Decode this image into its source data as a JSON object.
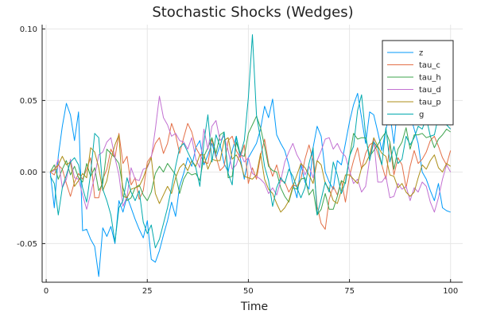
{
  "chart_data": {
    "type": "line",
    "title": "Stochastic Shocks (Wedges)",
    "xlabel": "Time",
    "ylabel": "",
    "xlim": [
      -1,
      103
    ],
    "ylim": [
      -0.077,
      0.103
    ],
    "xticks": [
      0,
      25,
      50,
      75,
      100
    ],
    "xtick_labels": [
      "0",
      "25",
      "50",
      "75",
      "100"
    ],
    "yticks": [
      -0.05,
      0.0,
      0.05,
      0.1
    ],
    "ytick_labels": [
      "-0.05",
      "0.00",
      "0.05",
      "0.10"
    ],
    "grid": true,
    "legend": "top-right",
    "x": [
      1,
      2,
      3,
      4,
      5,
      6,
      7,
      8,
      9,
      10,
      11,
      12,
      13,
      14,
      15,
      16,
      17,
      18,
      19,
      20,
      21,
      22,
      23,
      24,
      25,
      26,
      27,
      28,
      29,
      30,
      31,
      32,
      33,
      34,
      35,
      36,
      37,
      38,
      39,
      40,
      41,
      42,
      43,
      44,
      45,
      46,
      47,
      48,
      49,
      50,
      51,
      52,
      53,
      54,
      55,
      56,
      57,
      58,
      59,
      60,
      61,
      62,
      63,
      64,
      65,
      66,
      67,
      68,
      69,
      70,
      71,
      72,
      73,
      74,
      75,
      76,
      77,
      78,
      79,
      80,
      81,
      82,
      83,
      84,
      85,
      86,
      87,
      88,
      89,
      90,
      91,
      92,
      93,
      94,
      95,
      96,
      97,
      98,
      99,
      100
    ],
    "series": [
      {
        "name": "z",
        "color": "#009AFA",
        "values": [
          0.0,
          -0.025,
          0.011,
          0.032,
          0.048,
          0.04,
          0.022,
          0.042,
          -0.041,
          -0.04,
          -0.047,
          -0.052,
          -0.073,
          -0.039,
          -0.045,
          -0.038,
          -0.05,
          -0.02,
          -0.028,
          -0.017,
          -0.025,
          -0.033,
          -0.04,
          -0.046,
          -0.034,
          -0.061,
          -0.063,
          -0.055,
          -0.044,
          -0.034,
          -0.021,
          -0.031,
          -0.01,
          -0.001,
          0.01,
          0.004,
          0.017,
          0.022,
          0.005,
          0.012,
          0.02,
          0.01,
          0.019,
          0.006,
          0.0,
          0.015,
          0.025,
          0.01,
          -0.005,
          0.01,
          0.015,
          0.02,
          0.03,
          0.046,
          0.038,
          0.051,
          0.026,
          0.02,
          0.015,
          0.005,
          -0.008,
          -0.018,
          0.005,
          -0.007,
          -0.012,
          0.017,
          0.032,
          0.025,
          0.0,
          -0.007,
          -0.012,
          0.008,
          0.005,
          0.02,
          0.035,
          0.047,
          0.055,
          0.038,
          0.02,
          0.042,
          0.04,
          0.028,
          0.015,
          0.03,
          0.041,
          0.02,
          0.048,
          0.049,
          0.04,
          0.04,
          0.03,
          0.02,
          0.0,
          -0.005,
          -0.013,
          -0.02,
          -0.008,
          -0.025,
          -0.027,
          -0.028
        ]
      },
      {
        "name": "tau_c",
        "color": "#E36F47",
        "values": [
          0.0,
          -0.002,
          0.005,
          0.002,
          -0.008,
          -0.017,
          -0.007,
          -0.001,
          -0.005,
          0.002,
          0.01,
          -0.018,
          -0.018,
          -0.005,
          0.002,
          0.016,
          0.01,
          0.027,
          0.006,
          0.011,
          -0.009,
          -0.004,
          -0.019,
          -0.013,
          0.007,
          0.011,
          0.02,
          0.024,
          0.013,
          0.02,
          0.034,
          0.026,
          0.013,
          0.024,
          0.034,
          0.028,
          0.017,
          0.012,
          0.007,
          0.006,
          0.023,
          0.011,
          0.001,
          0.004,
          0.022,
          0.025,
          0.015,
          0.01,
          0.019,
          -0.008,
          0.003,
          -0.005,
          0.011,
          0.023,
          0.006,
          -0.003,
          0.005,
          -0.006,
          -0.007,
          -0.014,
          -0.009,
          -0.01,
          -0.005,
          0.009,
          0.019,
          0.008,
          -0.024,
          -0.036,
          -0.04,
          -0.019,
          -0.01,
          -0.016,
          -0.006,
          -0.021,
          -0.003,
          0.008,
          0.017,
          0.002,
          0.013,
          0.019,
          0.021,
          0.013,
          0.005,
          -0.005,
          0.02,
          -0.002,
          0.01,
          0.005,
          -0.011,
          0.004,
          0.015,
          0.006,
          0.009,
          0.014,
          0.022,
          0.025,
          0.018,
          0.01,
          0.005,
          0.015
        ]
      },
      {
        "name": "tau_h",
        "color": "#3EA44E",
        "values": [
          0.0,
          0.005,
          -0.005,
          0.002,
          0.008,
          -0.002,
          0.004,
          -0.004,
          -0.007,
          0.006,
          -0.003,
          0.003,
          -0.013,
          -0.008,
          0.016,
          0.013,
          0.01,
          0.006,
          -0.011,
          -0.02,
          -0.018,
          -0.011,
          -0.009,
          -0.016,
          -0.02,
          -0.014,
          -0.001,
          0.004,
          0.0,
          0.006,
          0.002,
          -0.002,
          -0.015,
          -0.005,
          0.0,
          -0.002,
          -0.001,
          -0.006,
          0.011,
          0.017,
          0.024,
          0.013,
          0.026,
          0.028,
          -0.004,
          -0.003,
          0.021,
          0.012,
          0.011,
          0.027,
          0.033,
          0.039,
          0.031,
          0.018,
          0.004,
          0.001,
          0.0,
          -0.011,
          -0.017,
          -0.021,
          -0.011,
          -0.012,
          -0.005,
          -0.004,
          -0.016,
          -0.012,
          -0.03,
          -0.026,
          -0.015,
          -0.026,
          -0.026,
          -0.017,
          -0.006,
          -0.008,
          0.01,
          0.027,
          0.023,
          0.024,
          0.024,
          0.011,
          0.015,
          0.019,
          0.024,
          0.028,
          0.021,
          0.002,
          0.016,
          0.021,
          0.031,
          0.016,
          0.026,
          0.026,
          0.027,
          0.024,
          0.025,
          0.017,
          0.023,
          0.026,
          0.03,
          0.028
        ]
      },
      {
        "name": "tau_d",
        "color": "#C271D2",
        "values": [
          0.0,
          0.001,
          0.009,
          -0.011,
          -0.005,
          0.009,
          -0.004,
          -0.005,
          -0.016,
          -0.026,
          -0.015,
          -0.003,
          0.012,
          0.014,
          0.021,
          0.024,
          0.01,
          -0.002,
          -0.024,
          -0.017,
          0.003,
          -0.005,
          -0.006,
          0.002,
          0.003,
          0.01,
          0.03,
          0.053,
          0.038,
          0.033,
          0.025,
          0.027,
          0.022,
          0.021,
          0.016,
          0.024,
          0.009,
          0.003,
          0.03,
          0.016,
          0.032,
          0.036,
          0.022,
          0.025,
          0.015,
          0.002,
          0.005,
          0.014,
          0.007,
          0.01,
          -0.001,
          -0.003,
          -0.005,
          -0.008,
          -0.015,
          -0.011,
          -0.016,
          -0.006,
          0.007,
          0.014,
          0.02,
          0.012,
          0.007,
          -0.002,
          0.004,
          -0.004,
          0.008,
          0.015,
          0.023,
          0.024,
          0.016,
          0.02,
          0.014,
          0.011,
          0.001,
          -0.008,
          -0.005,
          -0.014,
          -0.01,
          0.009,
          0.023,
          -0.007,
          -0.007,
          -0.003,
          -0.018,
          -0.017,
          -0.008,
          -0.012,
          -0.01,
          -0.02,
          -0.011,
          -0.014,
          -0.007,
          -0.01,
          -0.021,
          -0.028,
          -0.018,
          -0.005,
          0.005,
          0.0
        ]
      },
      {
        "name": "tau_p",
        "color": "#AC8E18",
        "values": [
          0.0,
          0.002,
          0.005,
          0.011,
          0.005,
          0.007,
          -0.01,
          -0.006,
          -0.001,
          -0.004,
          0.017,
          0.014,
          0.003,
          -0.013,
          -0.006,
          0.009,
          0.019,
          0.026,
          -0.017,
          -0.018,
          -0.012,
          -0.011,
          -0.01,
          -0.004,
          0.004,
          0.01,
          -0.015,
          -0.022,
          -0.016,
          -0.01,
          -0.015,
          -0.004,
          0.003,
          0.006,
          0.001,
          0.008,
          0.004,
          0.012,
          0.012,
          0.002,
          0.009,
          0.008,
          0.008,
          0.022,
          0.024,
          0.009,
          0.012,
          0.007,
          -0.003,
          -0.004,
          -0.005,
          -0.002,
          0.013,
          -0.005,
          -0.012,
          -0.015,
          -0.022,
          -0.028,
          -0.025,
          -0.02,
          -0.01,
          -0.002,
          0.006,
          0.003,
          -0.002,
          -0.008,
          0.008,
          0.005,
          -0.008,
          -0.012,
          -0.02,
          -0.022,
          -0.013,
          -0.002,
          -0.002,
          -0.005,
          -0.008,
          0.003,
          0.006,
          0.012,
          0.024,
          0.018,
          0.013,
          0.011,
          -0.002,
          -0.003,
          -0.011,
          -0.008,
          -0.014,
          -0.017,
          -0.014,
          -0.004,
          0.005,
          0.002,
          0.008,
          0.012,
          0.003,
          0.0,
          0.006,
          0.004
        ]
      },
      {
        "name": "g",
        "color": "#00A9AD",
        "values": [
          -0.003,
          -0.008,
          -0.03,
          -0.011,
          -0.002,
          0.007,
          0.01,
          0.005,
          -0.011,
          -0.021,
          -0.001,
          0.027,
          0.024,
          -0.012,
          -0.02,
          -0.03,
          -0.049,
          -0.025,
          -0.02,
          -0.004,
          -0.014,
          -0.02,
          -0.013,
          -0.035,
          -0.043,
          -0.037,
          -0.053,
          -0.047,
          -0.036,
          -0.025,
          -0.011,
          0.004,
          0.017,
          0.02,
          0.014,
          0.008,
          0.003,
          -0.01,
          0.021,
          0.04,
          0.007,
          0.026,
          0.018,
          0.028,
          -0.001,
          -0.009,
          0.025,
          0.012,
          0.022,
          0.052,
          0.096,
          0.04,
          0.023,
          0.004,
          -0.006,
          -0.024,
          -0.011,
          -0.004,
          -0.008,
          0.002,
          -0.003,
          -0.011,
          -0.018,
          -0.011,
          0.006,
          0.017,
          -0.03,
          -0.019,
          -0.007,
          -0.014,
          0.007,
          -0.002,
          -0.015,
          -0.007,
          0.011,
          0.018,
          0.043,
          0.054,
          0.026,
          0.008,
          0.021,
          0.017,
          0.005,
          0.031,
          0.007,
          0.018,
          0.006,
          0.009,
          0.025,
          0.019,
          0.024,
          0.032,
          0.03,
          0.038,
          0.025,
          0.026,
          0.039,
          0.045,
          0.033,
          0.03
        ]
      }
    ]
  }
}
